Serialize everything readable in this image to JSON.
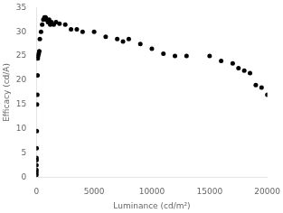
{
  "chart_data": {
    "type": "scatter",
    "x": [
      1,
      2,
      3,
      5,
      8,
      12,
      20,
      30,
      50,
      80,
      100,
      120,
      150,
      200,
      250,
      300,
      400,
      500,
      600,
      700,
      800,
      900,
      1000,
      1100,
      1200,
      1300,
      1500,
      1700,
      2000,
      2500,
      3000,
      3500,
      4000,
      5000,
      6000,
      7000,
      7500,
      8000,
      9000,
      10000,
      11000,
      12000,
      13000,
      15000,
      16000,
      17000,
      17500,
      18000,
      18500,
      19000,
      19500,
      20000
    ],
    "values": [
      0.5,
      1.0,
      1.5,
      2.5,
      3.5,
      4.0,
      6.0,
      9.5,
      15.0,
      17.0,
      21.0,
      24.5,
      25.0,
      25.5,
      26.0,
      28.5,
      30.0,
      31.5,
      32.5,
      33.0,
      33.0,
      32.5,
      32.0,
      32.5,
      31.5,
      32.0,
      31.5,
      32.0,
      31.7,
      31.5,
      30.5,
      30.5,
      30.0,
      30.0,
      29.0,
      28.5,
      28.0,
      28.5,
      27.5,
      26.5,
      25.5,
      25.0,
      25.0,
      25.0,
      24.0,
      23.5,
      22.5,
      22.0,
      21.5,
      19.0,
      18.5,
      17.0
    ],
    "xlabel": "Luminance (cd/m²)",
    "ylabel": "Efficacy (cd/A)",
    "xlim": [
      0,
      20000
    ],
    "ylim": [
      0,
      35
    ],
    "xticks": [
      0,
      5000,
      10000,
      15000,
      20000
    ],
    "yticks": [
      0,
      5,
      10,
      15,
      20,
      25,
      30,
      35
    ],
    "color": "black",
    "grid": false
  }
}
